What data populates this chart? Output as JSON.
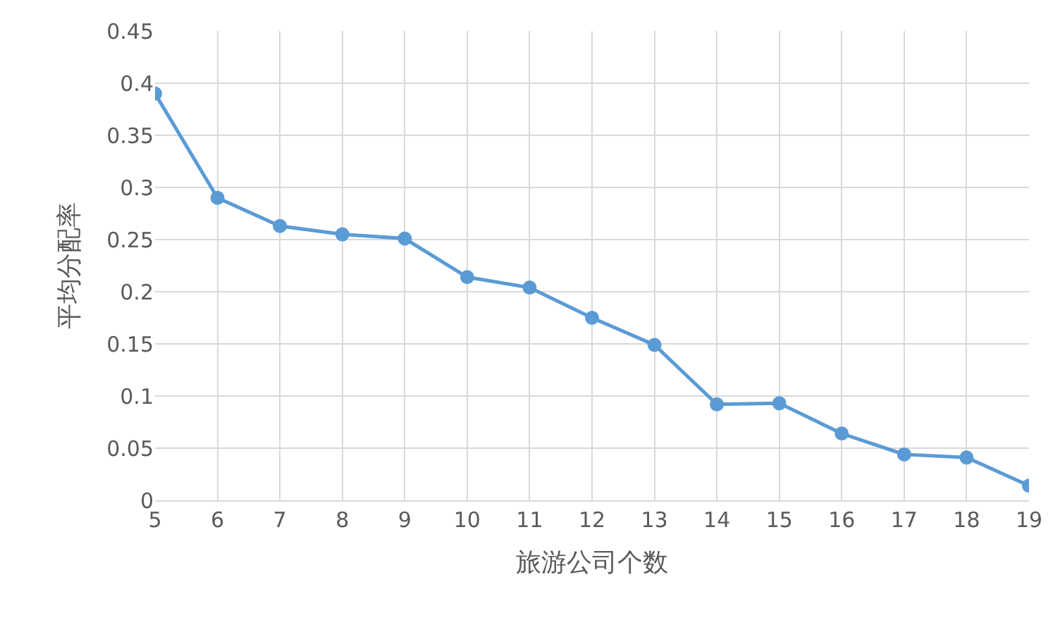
{
  "chart_data": {
    "type": "line",
    "xlabel": "旅游公司个数",
    "ylabel": "平均分配率",
    "x": [
      5,
      6,
      7,
      8,
      9,
      10,
      11,
      12,
      13,
      14,
      15,
      16,
      17,
      18,
      19
    ],
    "series": [
      {
        "color": "#5b9bd5",
        "values": [
          0.39,
          0.29,
          0.263,
          0.255,
          0.251,
          0.214,
          0.204,
          0.175,
          0.149,
          0.092,
          0.093,
          0.064,
          0.044,
          0.041,
          0.014
        ]
      }
    ],
    "xlim": [
      5,
      19
    ],
    "xticks": [
      5,
      6,
      7,
      8,
      9,
      10,
      11,
      12,
      13,
      14,
      15,
      16,
      17,
      18,
      19
    ],
    "ylim": [
      0,
      0.45
    ],
    "yticks": [
      0,
      0.05,
      0.1,
      0.15,
      0.2,
      0.25,
      0.3,
      0.35,
      0.4,
      0.45
    ],
    "grid": true,
    "marker": "circle",
    "line_style": "solid",
    "legend": false
  }
}
